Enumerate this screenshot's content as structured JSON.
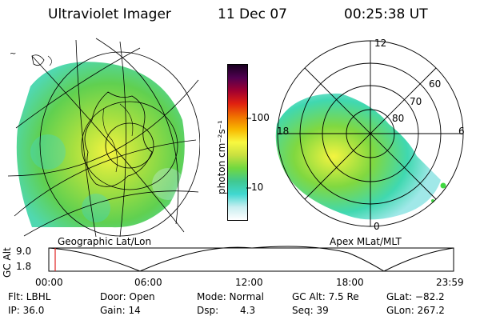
{
  "header": {
    "instrument": "Ultraviolet Imager",
    "date": "11 Dec 07",
    "time": "00:25:38 UT"
  },
  "geo_panel": {
    "label": "Geographic Lat/Lon"
  },
  "apex_panel": {
    "label": "Apex MLat/MLT",
    "mlt_labels": [
      "12",
      "18",
      "6",
      "0"
    ],
    "mlat_labels": [
      "60",
      "70",
      "80"
    ]
  },
  "colorbar": {
    "unit_label": "photon cm⁻²s⁻¹",
    "ticks": [
      "100",
      "10"
    ],
    "colors": [
      "#ffffff",
      "#c8eef0",
      "#40d8d0",
      "#40c890",
      "#70d840",
      "#c8e040",
      "#f8f840",
      "#f8b800",
      "#f07000",
      "#e02010",
      "#a00030",
      "#500050",
      "#180020"
    ]
  },
  "altitude_plot": {
    "ylabel": "GC Alt",
    "y_ticks": [
      "9.0",
      "1.8"
    ],
    "x_ticks": [
      "00:00",
      "06:00",
      "12:00",
      "18:00",
      "23:59"
    ],
    "current_time_marker": "00:25"
  },
  "info": {
    "flt": "Flt: LBHL",
    "ip": "IP: 36.0",
    "door": "Door: Open",
    "gain": "Gain: 14",
    "mode": "Mode: Normal",
    "dsp_label": "Dsp:",
    "dsp_value": "4.3",
    "gc_alt": "GC Alt: 7.5 Re",
    "seq": "Seq: 39",
    "glat": "GLat: −82.2",
    "glon": "GLon: 267.2"
  }
}
